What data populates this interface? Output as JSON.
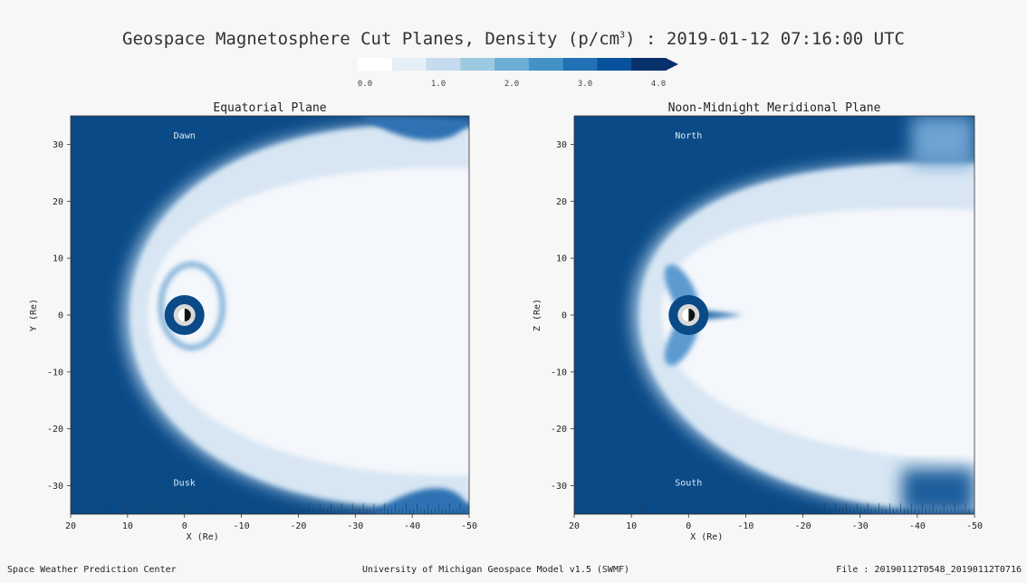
{
  "title": {
    "main": "Geospace Magnetosphere Cut Planes, Density (p/cm",
    "superscript": "3",
    "suffix": ") : 2019-01-12 07:16:00 UTC"
  },
  "colorbar": {
    "ticks": [
      "0.0",
      "1.0",
      "2.0",
      "3.0",
      "4.0"
    ],
    "min": 0,
    "max": 4,
    "extend": "max",
    "cmap": "Blues",
    "colors": [
      "#ffffff",
      "#e6eef8",
      "#c6dbef",
      "#9ecae1",
      "#6baed6",
      "#4292c6",
      "#2171b5",
      "#08519c",
      "#08306b"
    ]
  },
  "chart_data": [
    {
      "type": "heatmap",
      "title": "Equatorial Plane",
      "xlabel": "X (Re)",
      "ylabel": "Y (Re)",
      "xlim": [
        20,
        -50
      ],
      "ylim": [
        -35,
        35
      ],
      "xticks": [
        "20",
        "10",
        "0",
        "-10",
        "-20",
        "-30",
        "-40",
        "-50"
      ],
      "yticks": [
        "30",
        "20",
        "10",
        "0",
        "-10",
        "-20",
        "-30"
      ],
      "annotations": [
        {
          "text": "Dawn",
          "x": 0,
          "y": 31
        },
        {
          "text": "Dusk",
          "x": 0,
          "y": -30
        }
      ],
      "earth": {
        "x": 0,
        "y": 0
      }
    },
    {
      "type": "heatmap",
      "title": "Noon-Midnight Meridional Plane",
      "xlabel": "X (Re)",
      "ylabel": "Z (Re)",
      "xlim": [
        20,
        -50
      ],
      "ylim": [
        -35,
        35
      ],
      "xticks": [
        "20",
        "10",
        "0",
        "-10",
        "-20",
        "-30",
        "-40",
        "-50"
      ],
      "yticks": [
        "30",
        "20",
        "10",
        "0",
        "-10",
        "-20",
        "-30"
      ],
      "annotations": [
        {
          "text": "North",
          "x": 0,
          "y": 31
        },
        {
          "text": "South",
          "x": 0,
          "y": -30
        }
      ],
      "earth": {
        "x": 0,
        "y": 0
      }
    }
  ],
  "footer": {
    "left": "Space Weather Prediction Center",
    "center": "University of Michigan Geospace Model v1.5 (SWMF)",
    "right": "File : 20190112T0548_20190112T0716"
  }
}
